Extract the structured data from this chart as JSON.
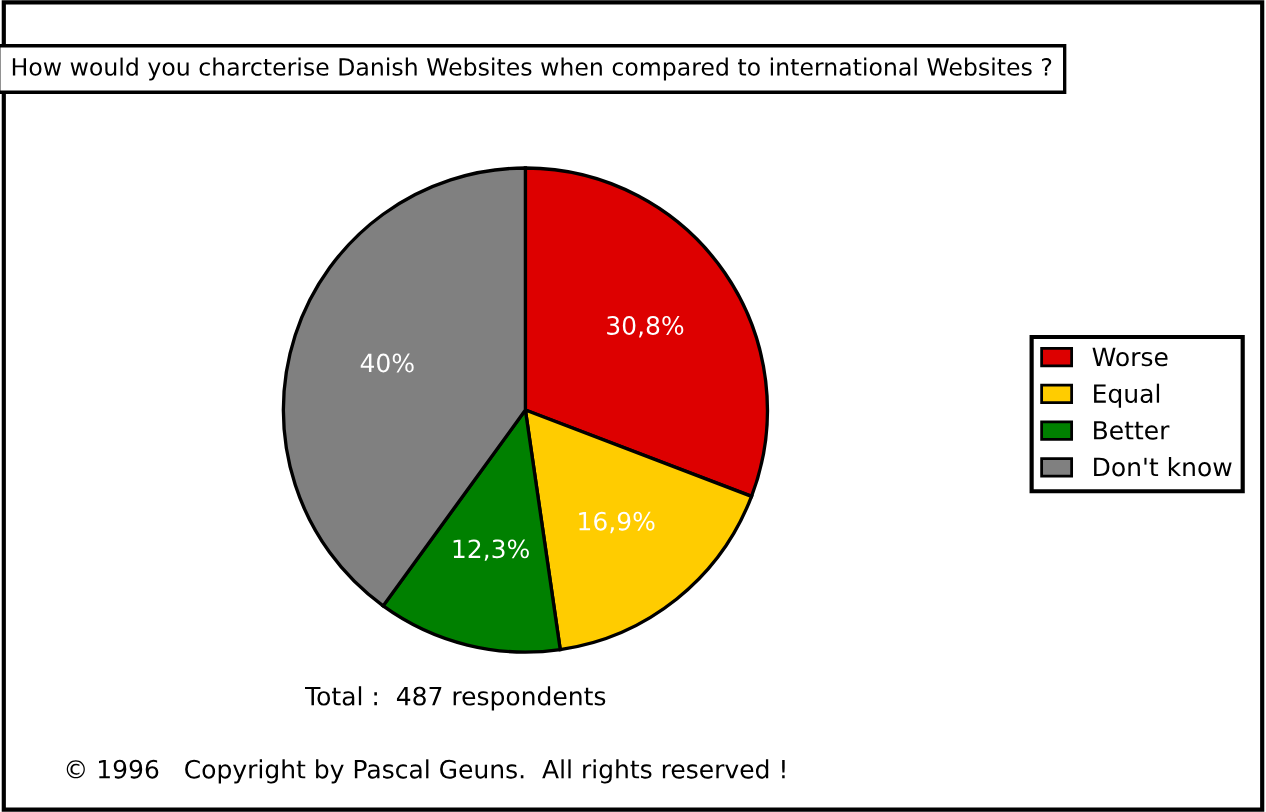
{
  "chart_data": {
    "type": "pie",
    "title": "How would you charcterise Danish Websites when compared to international Websites ?",
    "categories": [
      "Worse",
      "Equal",
      "Better",
      "Don't know"
    ],
    "values": [
      30.8,
      16.9,
      12.3,
      40
    ],
    "colors": [
      "#dd0000",
      "#ffcc00",
      "#008000",
      "#808080"
    ],
    "value_labels": [
      "30,8%",
      "16,9%",
      "12,3%",
      "40%"
    ],
    "legend": "right",
    "annotations": [
      "Total :  487 respondents",
      "© 1996   Copyright by Pascal Geuns.  All rights reserved !"
    ]
  }
}
